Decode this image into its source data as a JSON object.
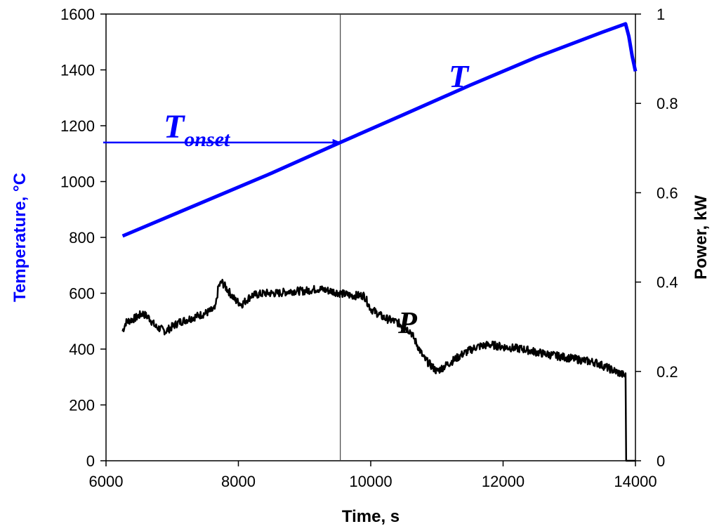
{
  "chart_data": {
    "type": "line",
    "xlabel": "Time, s",
    "ylabel_left": "Temperature, °C",
    "ylabel_right": "Power, kW",
    "xlim": [
      6000,
      14000
    ],
    "ylim_left": [
      0,
      1600
    ],
    "ylim_right": [
      0,
      1
    ],
    "x_ticks": [
      6000,
      8000,
      10000,
      12000,
      14000
    ],
    "y_left_ticks": [
      0,
      200,
      400,
      600,
      800,
      1000,
      1200,
      1400,
      1600
    ],
    "y_right_ticks": [
      0,
      0.2,
      0.4,
      0.6,
      0.8,
      1
    ],
    "y_right_tick_labels": [
      "0",
      "0.2",
      "0.4",
      "0.6",
      "0.8",
      "1"
    ],
    "grid": false,
    "legend": "none",
    "series": [
      {
        "name": "T",
        "axis": "left",
        "color": "#0000ff",
        "points": [
          [
            6250,
            805
          ],
          [
            7000,
            880
          ],
          [
            7800,
            960
          ],
          [
            8500,
            1030
          ],
          [
            9540,
            1140
          ],
          [
            10500,
            1240
          ],
          [
            11500,
            1345
          ],
          [
            12500,
            1445
          ],
          [
            13500,
            1535
          ],
          [
            13850,
            1565
          ],
          [
            13900,
            1520
          ],
          [
            13950,
            1450
          ],
          [
            14000,
            1395
          ]
        ]
      },
      {
        "name": "P",
        "axis": "right",
        "color": "#000000",
        "points": [
          [
            6250,
            0.29
          ],
          [
            6300,
            0.31
          ],
          [
            6450,
            0.32
          ],
          [
            6550,
            0.33
          ],
          [
            6650,
            0.32
          ],
          [
            6750,
            0.3
          ],
          [
            6900,
            0.29
          ],
          [
            7100,
            0.31
          ],
          [
            7300,
            0.32
          ],
          [
            7500,
            0.33
          ],
          [
            7650,
            0.34
          ],
          [
            7700,
            0.39
          ],
          [
            7750,
            0.4
          ],
          [
            7850,
            0.38
          ],
          [
            7950,
            0.36
          ],
          [
            8050,
            0.35
          ],
          [
            8200,
            0.37
          ],
          [
            8400,
            0.375
          ],
          [
            8600,
            0.375
          ],
          [
            8800,
            0.38
          ],
          [
            9000,
            0.38
          ],
          [
            9200,
            0.385
          ],
          [
            9400,
            0.38
          ],
          [
            9540,
            0.375
          ],
          [
            9700,
            0.37
          ],
          [
            9900,
            0.37
          ],
          [
            10000,
            0.34
          ],
          [
            10200,
            0.32
          ],
          [
            10400,
            0.31
          ],
          [
            10600,
            0.29
          ],
          [
            10800,
            0.23
          ],
          [
            11000,
            0.2
          ],
          [
            11200,
            0.22
          ],
          [
            11400,
            0.24
          ],
          [
            11600,
            0.255
          ],
          [
            11800,
            0.26
          ],
          [
            12000,
            0.255
          ],
          [
            12300,
            0.25
          ],
          [
            12600,
            0.24
          ],
          [
            13000,
            0.23
          ],
          [
            13400,
            0.22
          ],
          [
            13850,
            0.19
          ],
          [
            13860,
            0.0
          ],
          [
            14000,
            0.0
          ]
        ]
      }
    ],
    "annotations": {
      "t_label": "T",
      "p_label": "P",
      "onset_main": "T",
      "onset_sub": "onset",
      "onset_x": 9540,
      "onset_y": 1140
    }
  }
}
